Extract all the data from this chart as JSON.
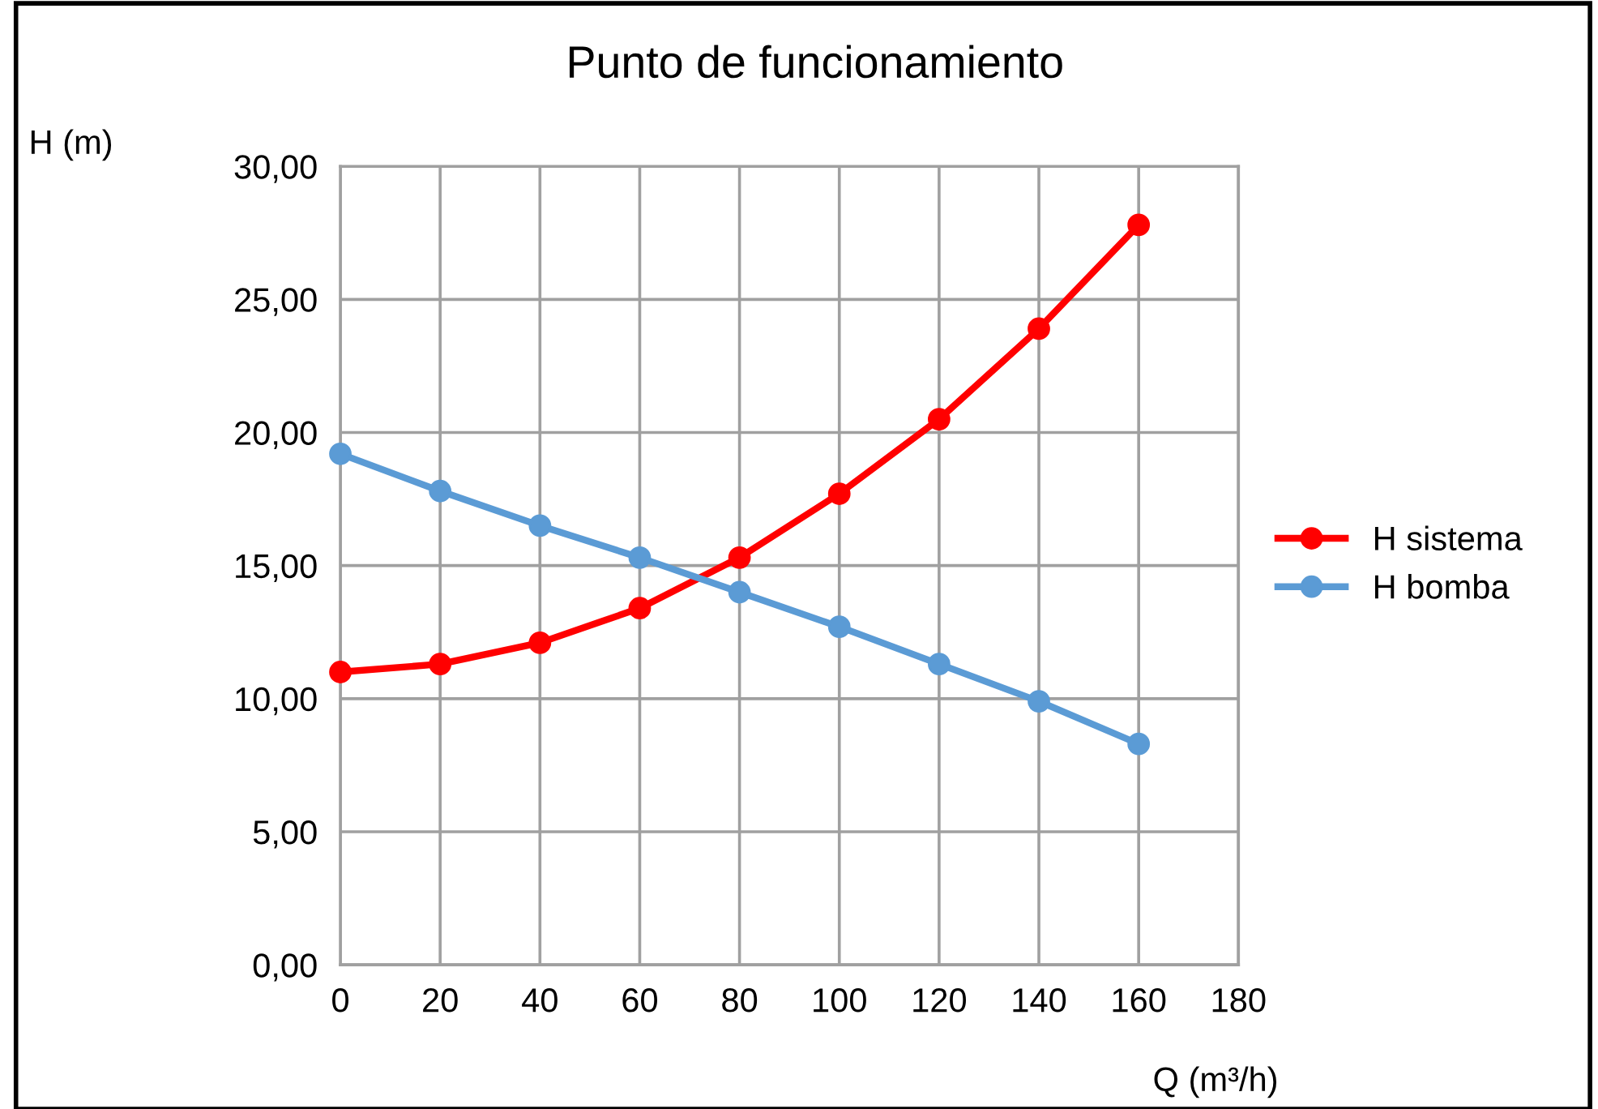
{
  "chart_data": {
    "type": "line",
    "title": "Punto de funcionamiento",
    "xlabel": "Q (m³/h)",
    "ylabel": "H (m)",
    "x": [
      0,
      20,
      40,
      60,
      80,
      100,
      120,
      140,
      160
    ],
    "series": [
      {
        "name": "H sistema",
        "color": "#ff0000",
        "values": [
          11.0,
          11.3,
          12.1,
          13.4,
          15.3,
          17.7,
          20.5,
          23.9,
          27.8
        ]
      },
      {
        "name": "H bomba",
        "color": "#5b9bd5",
        "values": [
          19.2,
          17.8,
          16.5,
          15.3,
          14.0,
          12.7,
          11.3,
          9.9,
          8.3
        ]
      }
    ],
    "xlim": [
      0,
      180
    ],
    "xticks": [
      0,
      20,
      40,
      60,
      80,
      100,
      120,
      140,
      160,
      180
    ],
    "ylim": [
      0,
      30
    ],
    "yticks": [
      {
        "value": 0,
        "label": "0,00"
      },
      {
        "value": 5,
        "label": "5,00"
      },
      {
        "value": 10,
        "label": "10,00"
      },
      {
        "value": 15,
        "label": "15,00"
      },
      {
        "value": 20,
        "label": "20,00"
      },
      {
        "value": 25,
        "label": "25,00"
      },
      {
        "value": 30,
        "label": "30,00"
      }
    ],
    "grid": true,
    "legend": "right",
    "marker": "circle",
    "line_style": "solid"
  }
}
